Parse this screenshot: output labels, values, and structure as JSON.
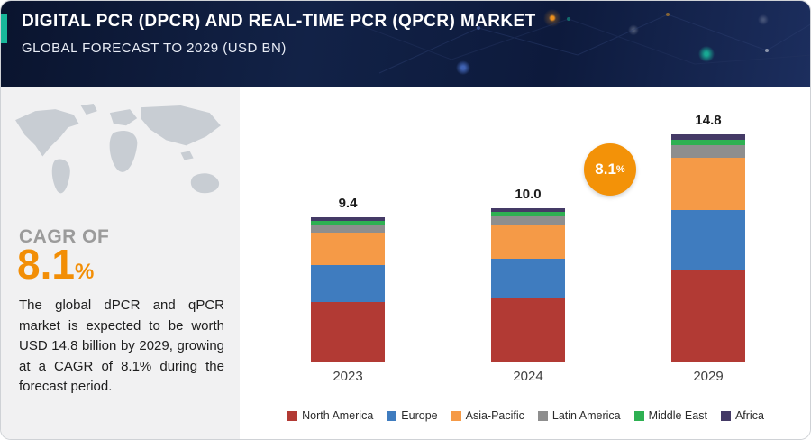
{
  "header": {
    "title": "DIGITAL PCR (DPCR) AND REAL-TIME PCR (QPCR) MARKET",
    "subtitle": "GLOBAL FORECAST TO 2029 (USD BN)"
  },
  "sidebar": {
    "cagr_label": "CAGR OF",
    "cagr_value": "8.1",
    "cagr_percent": "%",
    "description": "The global dPCR and qPCR market is expected to be worth USD 14.8 billion by 2029, growing at a CAGR of 8.1% during the forecast period."
  },
  "chart_data": {
    "type": "bar",
    "stacked": true,
    "title": "Digital PCR (dPCR) and Real-Time PCR (qPCR) Market, Global Forecast to 2029 (USD BN)",
    "categories": [
      "2023",
      "2024",
      "2029"
    ],
    "series": [
      {
        "name": "North America",
        "color": "#b23a34",
        "values": [
          3.9,
          4.1,
          6.0
        ]
      },
      {
        "name": "Europe",
        "color": "#3f7cbf",
        "values": [
          2.4,
          2.6,
          3.9
        ]
      },
      {
        "name": "Asia-Pacific",
        "color": "#f59a47",
        "values": [
          2.1,
          2.2,
          3.4
        ]
      },
      {
        "name": "Latin America",
        "color": "#8e8e8e",
        "values": [
          0.5,
          0.55,
          0.8
        ]
      },
      {
        "name": "Middle East",
        "color": "#2eb052",
        "values": [
          0.3,
          0.3,
          0.4
        ]
      },
      {
        "name": "Africa",
        "color": "#443a66",
        "values": [
          0.2,
          0.25,
          0.3
        ]
      }
    ],
    "totals": [
      "9.4",
      "10.0",
      "14.8"
    ],
    "ylim": [
      0,
      15
    ],
    "grid": false,
    "legend_position": "bottom",
    "callout": {
      "value": "8.1",
      "percent": "%"
    }
  }
}
